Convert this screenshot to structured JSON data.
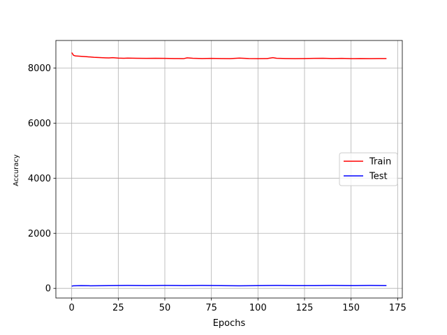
{
  "chart_data": {
    "type": "line",
    "title": "",
    "xlabel": "Epochs",
    "ylabel": "Accuracy",
    "xlim": [
      -8.5,
      177.5
    ],
    "ylim": [
      -350,
      9000
    ],
    "xticks": [
      0,
      25,
      50,
      75,
      100,
      125,
      150,
      175
    ],
    "yticks": [
      0,
      2000,
      4000,
      6000,
      8000
    ],
    "grid": true,
    "legend_position": "center-right",
    "series": [
      {
        "name": "Train",
        "color": "#ff0000",
        "x": [
          0,
          1,
          2,
          4,
          6,
          8,
          10,
          12,
          15,
          18,
          20,
          22,
          25,
          28,
          30,
          35,
          40,
          45,
          50,
          55,
          60,
          62,
          65,
          70,
          75,
          80,
          85,
          90,
          95,
          100,
          105,
          108,
          110,
          115,
          120,
          125,
          130,
          135,
          140,
          145,
          150,
          155,
          160,
          165,
          169
        ],
        "y": [
          8560,
          8460,
          8440,
          8430,
          8420,
          8410,
          8400,
          8390,
          8380,
          8370,
          8365,
          8375,
          8360,
          8355,
          8360,
          8355,
          8350,
          8355,
          8350,
          8345,
          8340,
          8370,
          8355,
          8345,
          8350,
          8345,
          8340,
          8360,
          8345,
          8340,
          8345,
          8375,
          8355,
          8345,
          8340,
          8345,
          8350,
          8355,
          8345,
          8350,
          8340,
          8345,
          8340,
          8345,
          8345
        ]
      },
      {
        "name": "Test",
        "color": "#0000ff",
        "x": [
          0,
          1,
          5,
          10,
          20,
          30,
          40,
          50,
          60,
          70,
          80,
          90,
          100,
          110,
          120,
          130,
          140,
          150,
          160,
          169
        ],
        "y": [
          80,
          95,
          100,
          95,
          100,
          105,
          100,
          105,
          100,
          105,
          100,
          95,
          100,
          105,
          100,
          100,
          105,
          100,
          105,
          100
        ]
      }
    ]
  }
}
